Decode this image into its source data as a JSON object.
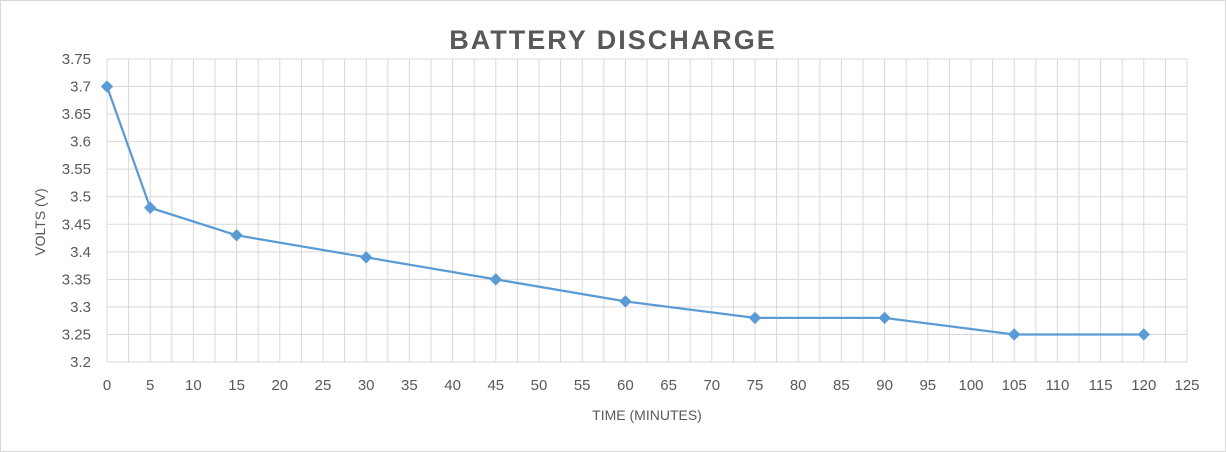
{
  "chart_data": {
    "type": "scatter",
    "title": "BATTERY  DISCHARGE",
    "xlabel": "TIME (MINUTES)",
    "ylabel": "VOLTS (V)",
    "xlim": [
      0,
      125
    ],
    "ylim": [
      3.2,
      3.75
    ],
    "x_ticks": [
      "0",
      "5",
      "10",
      "15",
      "20",
      "25",
      "30",
      "35",
      "40",
      "45",
      "50",
      "55",
      "60",
      "65",
      "70",
      "75",
      "80",
      "85",
      "90",
      "95",
      "100",
      "105",
      "110",
      "115",
      "120",
      "125"
    ],
    "y_ticks": [
      "3.2",
      "3.25",
      "3.3",
      "3.35",
      "3.4",
      "3.45",
      "3.5",
      "3.55",
      "3.6",
      "3.65",
      "3.7",
      "3.75"
    ],
    "grid": true,
    "legend": "none",
    "series": [
      {
        "color": "#5b9bd5",
        "marker": "diamond",
        "x": [
          0,
          5,
          15,
          30,
          45,
          60,
          75,
          90,
          105,
          120
        ],
        "y": [
          3.7,
          3.48,
          3.43,
          3.39,
          3.35,
          3.31,
          3.28,
          3.28,
          3.25,
          3.25
        ]
      }
    ]
  }
}
